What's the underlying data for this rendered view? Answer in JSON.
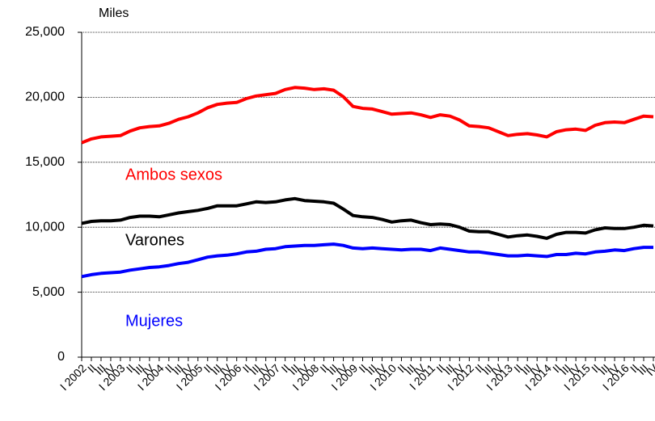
{
  "chart_data": {
    "type": "line",
    "y_label": "Miles",
    "categories": [
      "I 2002",
      "II",
      "III",
      "IV",
      "I 2003",
      "II",
      "III",
      "IV",
      "I 2004",
      "II",
      "III",
      "IV",
      "I 2005",
      "II",
      "III",
      "IV",
      "I 2006",
      "II",
      "III",
      "IV",
      "I 2007",
      "II",
      "III",
      "IV",
      "I 2008",
      "II",
      "III",
      "IV",
      "I 2009",
      "II",
      "III",
      "IV",
      "I 2010",
      "II",
      "III",
      "IV",
      "I 2011",
      "II",
      "III",
      "IV",
      "I 2012",
      "II",
      "III",
      "IV",
      "I 2013",
      "II",
      "III",
      "IV",
      "I 2014",
      "II",
      "III",
      "IV",
      "I 2015",
      "II",
      "III",
      "IV",
      "I 2016",
      "II",
      "III",
      "IV"
    ],
    "series": [
      {
        "name": "Ambos sexos",
        "color": "#ff0000",
        "values": [
          16500,
          16800,
          16950,
          17000,
          17050,
          17400,
          17650,
          17750,
          17800,
          18000,
          18300,
          18500,
          18800,
          19200,
          19450,
          19550,
          19600,
          19900,
          20100,
          20200,
          20300,
          20600,
          20750,
          20700,
          20600,
          20650,
          20550,
          20050,
          19300,
          19150,
          19100,
          18900,
          18700,
          18750,
          18800,
          18650,
          18450,
          18650,
          18550,
          18250,
          17800,
          17750,
          17650,
          17350,
          17050,
          17150,
          17200,
          17100,
          16950,
          17350,
          17500,
          17550,
          17450,
          17850,
          18050,
          18100,
          18050,
          18300,
          18550,
          18500
        ]
      },
      {
        "name": "Varones",
        "color": "#000000",
        "values": [
          10300,
          10450,
          10500,
          10500,
          10550,
          10750,
          10850,
          10850,
          10800,
          10950,
          11100,
          11200,
          11300,
          11450,
          11650,
          11650,
          11650,
          11800,
          11950,
          11900,
          11950,
          12100,
          12200,
          12050,
          12000,
          11950,
          11850,
          11400,
          10900,
          10800,
          10750,
          10600,
          10400,
          10500,
          10550,
          10350,
          10200,
          10250,
          10200,
          10000,
          9700,
          9650,
          9650,
          9450,
          9250,
          9350,
          9400,
          9300,
          9150,
          9450,
          9600,
          9600,
          9550,
          9800,
          9950,
          9900,
          9900,
          10000,
          10150,
          10100
        ]
      },
      {
        "name": "Mujeres",
        "color": "#0000ff",
        "values": [
          6200,
          6350,
          6450,
          6500,
          6550,
          6700,
          6800,
          6900,
          6950,
          7050,
          7200,
          7300,
          7500,
          7700,
          7800,
          7850,
          7950,
          8100,
          8150,
          8300,
          8350,
          8500,
          8550,
          8600,
          8600,
          8650,
          8700,
          8600,
          8400,
          8350,
          8400,
          8350,
          8300,
          8250,
          8300,
          8300,
          8200,
          8400,
          8300,
          8200,
          8100,
          8100,
          8000,
          7900,
          7800,
          7800,
          7850,
          7800,
          7750,
          7900,
          7900,
          8000,
          7950,
          8100,
          8150,
          8250,
          8200,
          8350,
          8450,
          8450
        ]
      }
    ],
    "ylim": [
      0,
      25000
    ],
    "yticks": [
      0,
      {
        "value": 5000,
        "label": "5,000"
      },
      {
        "value": 10000,
        "label": "10,000"
      },
      {
        "value": 15000,
        "label": "15,000"
      },
      {
        "value": 20000,
        "label": "20,000"
      },
      {
        "value": 25000,
        "label": "25,000"
      }
    ],
    "grid": true
  }
}
